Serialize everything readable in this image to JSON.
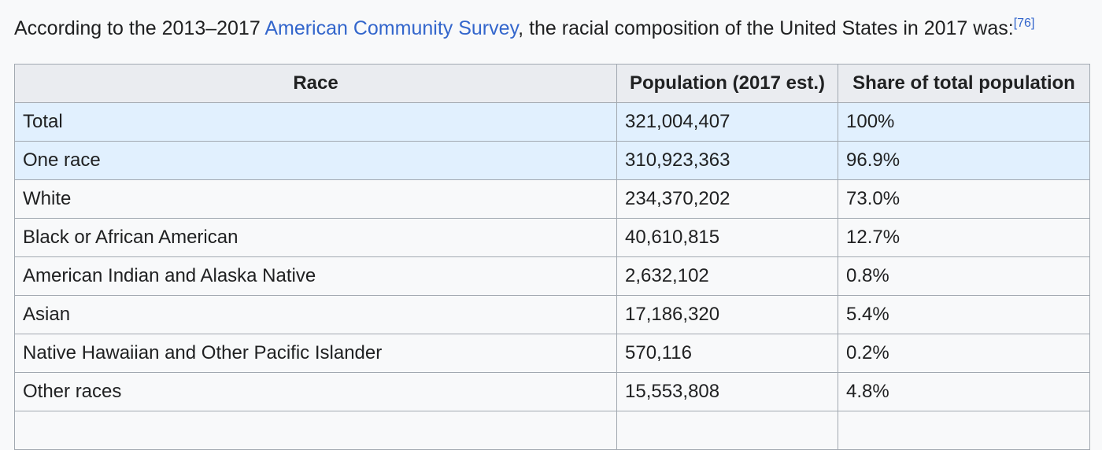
{
  "intro": {
    "before": "According to the 2013–2017 ",
    "link": "American Community Survey",
    "after": ", the racial composition of the United States in 2017 was:",
    "ref": "[76]"
  },
  "table": {
    "headers": [
      "Race",
      "Population (2017 est.)",
      "Share of total population"
    ],
    "rows": [
      {
        "race": "Total",
        "population": "321,004,407",
        "share": "100%"
      },
      {
        "race": "One race",
        "population": "310,923,363",
        "share": "96.9%"
      },
      {
        "race": "White",
        "population": "234,370,202",
        "share": "73.0%"
      },
      {
        "race": "Black or African American",
        "population": "40,610,815",
        "share": "12.7%"
      },
      {
        "race": "American Indian and Alaska Native",
        "population": "2,632,102",
        "share": "0.8%"
      },
      {
        "race": "Asian",
        "population": "17,186,320",
        "share": "5.4%"
      },
      {
        "race": "Native Hawaiian and Other Pacific Islander",
        "population": "570,116",
        "share": "0.2%"
      },
      {
        "race": "Other races",
        "population": "15,553,808",
        "share": "4.8%"
      },
      {
        "race": "",
        "population": "",
        "share": ""
      }
    ]
  }
}
